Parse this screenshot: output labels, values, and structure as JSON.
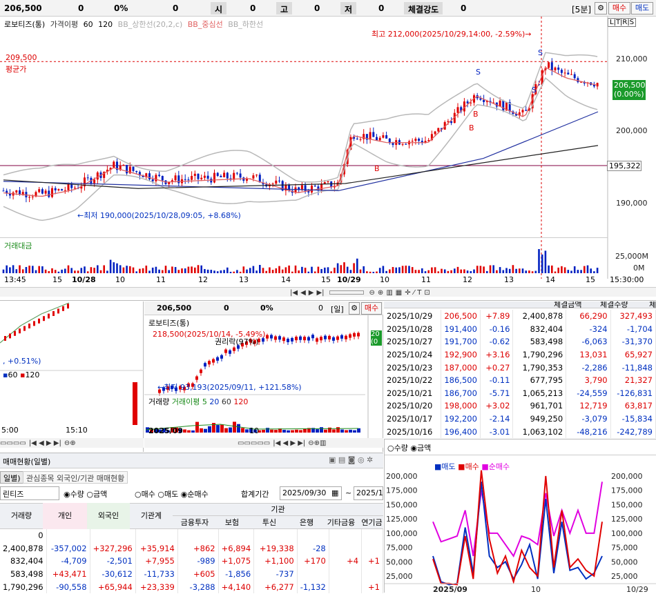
{
  "topbar": {
    "price": "206,500",
    "change": "0",
    "rate": "0%",
    "vol": "0",
    "open_label": "시",
    "open": "0",
    "high_label": "고",
    "high": "0",
    "low_label": "저",
    "low": "0",
    "strength_label": "체결강도",
    "strength": "0",
    "period": "[5분]",
    "buy": "매수",
    "sell": "매도"
  },
  "main_chart": {
    "legend": [
      "로보티즈(통)",
      "가격이평",
      "60",
      "120",
      "BB_상한선(20,2,c)",
      "BB_중심선",
      "BB_하한선"
    ],
    "tools_label": "L|T|R|S",
    "high_note": "최고 212,000(2025/10/29,14:00, -2.59%)→",
    "low_note": "←최저 190,000(2025/10/28,09:05, +8.68%)",
    "avg_label": "평균가",
    "avg_price": "209,500",
    "right_axis": [
      "210,000",
      "200,000",
      "190,000"
    ],
    "cur_price": "206,500",
    "cur_rate": "(0.00%)",
    "line_price": "195,322",
    "volume_legend": "거래대금",
    "volume_axis": [
      "25,000M",
      "0M"
    ],
    "x_labels": [
      "13:45",
      "15",
      "10/28",
      "10",
      "11",
      "12",
      "13",
      "14",
      "15",
      "10/29",
      "10",
      "11",
      "12",
      "13",
      "14",
      "15",
      "15:30:00"
    ],
    "colors": {
      "up": "#e00000",
      "down": "#0020c0",
      "bb": "#b8b8b8",
      "mid": "#e06060",
      "ma60": "#2030a0",
      "ma120": "#202020"
    }
  },
  "left_mini": {
    "rate_note": ", +0.51%)",
    "legend": [
      "60",
      "120"
    ],
    "x_labels": [
      "5:00",
      "15:10"
    ]
  },
  "daily_chart": {
    "price": "206,500",
    "change": "0",
    "rate": "0%",
    "vol": "0",
    "period": "[일]",
    "buy": "매수",
    "title": "로보티즈(통)",
    "high_note": "218,500(2025/10/14, -5.49%)",
    "rights_note": "권리락(97%)",
    "low_note": "←최저 93,193(2025/09/11, +121.58%)",
    "volume_legend": [
      "거래량",
      "거래이평",
      "5",
      "20",
      "60",
      "120"
    ],
    "x_labels": [
      "2025/09",
      "10"
    ],
    "right_tags": [
      "20",
      "(0"
    ]
  },
  "daily_table": {
    "headers": [
      "체결금액",
      "체결수량",
      "체"
    ],
    "rows": [
      {
        "date": "2025/10/29",
        "price": "206,500",
        "chg": "+7.89",
        "vol": "2,400,878",
        "amt": "66,290",
        "qty": "327,493"
      },
      {
        "date": "2025/10/28",
        "price": "191,400",
        "chg": "-0.16",
        "vol": "832,404",
        "amt": "-324",
        "qty": "-1,704"
      },
      {
        "date": "2025/10/27",
        "price": "191,700",
        "chg": "-0.62",
        "vol": "583,498",
        "amt": "-6,063",
        "qty": "-31,370"
      },
      {
        "date": "2025/10/24",
        "price": "192,900",
        "chg": "+3.16",
        "vol": "1,790,296",
        "amt": "13,031",
        "qty": "65,927"
      },
      {
        "date": "2025/10/23",
        "price": "187,000",
        "chg": "+0.27",
        "vol": "1,790,353",
        "amt": "-2,286",
        "qty": "-11,848"
      },
      {
        "date": "2025/10/22",
        "price": "186,500",
        "chg": "-0.11",
        "vol": "677,795",
        "amt": "3,790",
        "qty": "21,327"
      },
      {
        "date": "2025/10/21",
        "price": "186,700",
        "chg": "-5.71",
        "vol": "1,065,213",
        "amt": "-24,559",
        "qty": "-126,831"
      },
      {
        "date": "2025/10/20",
        "price": "198,000",
        "chg": "+3.02",
        "vol": "961,701",
        "amt": "12,719",
        "qty": "63,817"
      },
      {
        "date": "2025/10/17",
        "price": "192,200",
        "chg": "-2.14",
        "vol": "949,250",
        "amt": "-3,079",
        "qty": "-15,834"
      },
      {
        "date": "2025/10/16",
        "price": "196,400",
        "chg": "-3.01",
        "vol": "1,063,102",
        "amt": "-48,216",
        "qty": "-242,789"
      }
    ]
  },
  "investor": {
    "title": "매매현황(일별)",
    "tabs": [
      "일별)",
      "관심종목 외국인/기관 매매현황"
    ],
    "stock": "린티즈",
    "radio1": [
      "수량",
      "금액"
    ],
    "radio2": [
      "매수",
      "매도",
      "순매수"
    ],
    "period_label": "합계기간",
    "date_from": "2025/09/30",
    "date_to": "2025/1",
    "group_header": "기관",
    "headers": [
      "거래량",
      "개인",
      "외국인",
      "기관계",
      "금융투자",
      "보험",
      "투신",
      "은행",
      "기타금융",
      "연기금"
    ],
    "rows": [
      [
        "0",
        "",
        "",
        "",
        "",
        "",
        "",
        "",
        "",
        ""
      ],
      [
        "2,400,878",
        "-357,002",
        "+327,296",
        "+35,914",
        "+862",
        "+6,894",
        "+19,338",
        "-28",
        "",
        ""
      ],
      [
        "832,404",
        "-4,709",
        "-2,501",
        "+7,955",
        "-989",
        "+1,075",
        "+1,100",
        "+170",
        "+4",
        "+1"
      ],
      [
        "583,498",
        "+43,471",
        "-30,612",
        "-11,733",
        "+605",
        "-1,856",
        "-737",
        "",
        "",
        ""
      ],
      [
        "1,790,296",
        "-90,558",
        "+65,944",
        "+23,339",
        "-3,288",
        "+4,140",
        "+6,277",
        "-1,132",
        "",
        "+1"
      ]
    ]
  },
  "flow_chart": {
    "radio": [
      "수량",
      "금액"
    ],
    "legend": [
      "매도",
      "매수",
      "순매수"
    ],
    "y_axis": [
      "200,000",
      "175,000",
      "150,000",
      "125,000",
      "100,000",
      "75,000",
      "50,000",
      "25,000"
    ],
    "x_labels": [
      "2025/09",
      "10",
      "10/29"
    ],
    "series": {
      "sell": [
        60000,
        15000,
        10000,
        12000,
        110000,
        30000,
        190000,
        60000,
        40000,
        50000,
        20000,
        45000,
        80000,
        20000,
        160000,
        30000,
        120000,
        35000,
        40000,
        20000,
        30000,
        60000
      ],
      "buy": [
        55000,
        12000,
        12000,
        10000,
        95000,
        20000,
        210000,
        90000,
        30000,
        60000,
        15000,
        70000,
        40000,
        25000,
        200000,
        40000,
        140000,
        40000,
        55000,
        35000,
        25000,
        120000
      ],
      "net": [
        120000,
        85000,
        90000,
        95000,
        140000,
        60000,
        175000,
        100000,
        100000,
        80000,
        60000,
        95000,
        90000,
        80000,
        170000,
        95000,
        140000,
        100000,
        140000,
        100000,
        100000,
        190000
      ]
    }
  }
}
